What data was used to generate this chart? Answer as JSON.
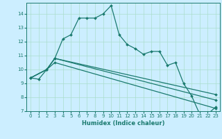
{
  "title": "",
  "xlabel": "Humidex (Indice chaleur)",
  "bg_color": "#cceeff",
  "grid_color": "#aaddcc",
  "line_color": "#1a7a6e",
  "xlim": [
    -0.5,
    23.5
  ],
  "ylim": [
    7,
    14.8
  ],
  "xticks": [
    0,
    1,
    2,
    3,
    4,
    5,
    6,
    7,
    8,
    9,
    10,
    11,
    12,
    13,
    14,
    15,
    16,
    17,
    18,
    19,
    20,
    21,
    22,
    23
  ],
  "yticks": [
    7,
    8,
    9,
    10,
    11,
    12,
    13,
    14
  ],
  "line1_x": [
    0,
    1,
    2,
    3,
    4,
    5,
    6,
    7,
    8,
    9,
    10,
    11,
    12,
    13,
    14,
    15,
    16,
    17,
    18,
    19,
    20,
    21,
    22,
    23
  ],
  "line1_y": [
    9.4,
    9.3,
    10.0,
    10.8,
    12.2,
    12.5,
    13.7,
    13.7,
    13.7,
    14.0,
    14.6,
    12.5,
    11.8,
    11.5,
    11.1,
    11.3,
    11.3,
    10.3,
    10.5,
    9.0,
    8.1,
    6.8,
    6.8,
    7.3
  ],
  "line2_x": [
    0,
    2,
    3,
    23
  ],
  "line2_y": [
    9.4,
    10.0,
    10.8,
    8.2
  ],
  "line3_x": [
    0,
    2,
    3,
    23
  ],
  "line3_y": [
    9.4,
    10.0,
    10.8,
    7.8
  ],
  "line4_x": [
    0,
    2,
    3,
    23
  ],
  "line4_y": [
    9.4,
    10.0,
    10.5,
    7.2
  ]
}
